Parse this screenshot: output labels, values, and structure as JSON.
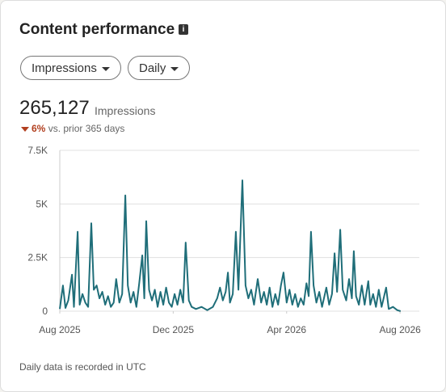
{
  "header": {
    "title": "Content performance"
  },
  "filters": [
    "Impressions",
    "Daily"
  ],
  "summary": {
    "total": "265,127",
    "unit": "Impressions",
    "change": "6%",
    "comparison": "vs. prior 365 days"
  },
  "footnote": "Daily data is recorded in UTC",
  "chart_data": {
    "type": "line",
    "color": "#1f6e79",
    "grid": true,
    "xlim": [
      0,
      12.68
    ],
    "ylim": [
      0,
      7500
    ],
    "xticks": [
      {
        "value": 0,
        "label": "Aug 2025"
      },
      {
        "value": 4,
        "label": "Dec 2025"
      },
      {
        "value": 8,
        "label": "Apr 2026"
      },
      {
        "value": 12,
        "label": "Aug 2026"
      }
    ],
    "yticks": [
      0,
      {
        "value": 2500,
        "label": "2.5K"
      },
      {
        "value": 5000,
        "label": "5K"
      },
      {
        "value": 7500,
        "label": "7.5K"
      }
    ],
    "x": [
      0,
      0.11,
      0.2,
      0.3,
      0.43,
      0.5,
      0.63,
      0.7,
      0.8,
      0.9,
      1.0,
      1.11,
      1.2,
      1.3,
      1.4,
      1.5,
      1.6,
      1.7,
      1.8,
      1.9,
      1.99,
      2.1,
      2.2,
      2.31,
      2.4,
      2.5,
      2.6,
      2.7,
      2.8,
      2.91,
      2.98,
      3.05,
      3.15,
      3.25,
      3.35,
      3.45,
      3.55,
      3.65,
      3.75,
      3.85,
      3.95,
      4.05,
      4.15,
      4.25,
      4.35,
      4.44,
      4.55,
      4.65,
      4.8,
      5.0,
      5.2,
      5.4,
      5.55,
      5.65,
      5.75,
      5.85,
      5.93,
      6.0,
      6.1,
      6.21,
      6.3,
      6.44,
      6.55,
      6.65,
      6.75,
      6.85,
      6.98,
      7.1,
      7.2,
      7.3,
      7.4,
      7.5,
      7.6,
      7.7,
      7.8,
      7.89,
      8.0,
      8.1,
      8.2,
      8.3,
      8.4,
      8.5,
      8.6,
      8.7,
      8.78,
      8.86,
      8.95,
      9.05,
      9.15,
      9.25,
      9.4,
      9.5,
      9.6,
      9.69,
      9.78,
      9.89,
      9.98,
      10.1,
      10.2,
      10.3,
      10.37,
      10.45,
      10.55,
      10.65,
      10.75,
      10.88,
      10.95,
      11.05,
      11.15,
      11.25,
      11.35,
      11.51,
      11.6,
      11.75,
      11.9,
      12.02
    ],
    "values": [
      100,
      1200,
      150,
      500,
      1700,
      200,
      3700,
      300,
      800,
      400,
      200,
      4100,
      1000,
      1200,
      600,
      900,
      300,
      700,
      200,
      400,
      1500,
      400,
      800,
      5400,
      1200,
      400,
      900,
      200,
      1300,
      2600,
      600,
      4200,
      1000,
      500,
      1000,
      200,
      900,
      300,
      1100,
      400,
      200,
      800,
      300,
      1000,
      400,
      3200,
      500,
      200,
      100,
      200,
      50,
      200,
      600,
      1100,
      500,
      900,
      1800,
      400,
      800,
      3700,
      1000,
      6100,
      1200,
      600,
      1000,
      300,
      1500,
      400,
      900,
      300,
      1100,
      200,
      800,
      300,
      1200,
      1800,
      400,
      1000,
      300,
      800,
      200,
      600,
      300,
      1300,
      700,
      3700,
      1200,
      400,
      900,
      200,
      1100,
      300,
      800,
      2700,
      900,
      3800,
      1000,
      500,
      1500,
      600,
      2800,
      700,
      300,
      1200,
      300,
      1400,
      300,
      800,
      200,
      1000,
      200,
      1100,
      100,
      200,
      50,
      0
    ]
  }
}
